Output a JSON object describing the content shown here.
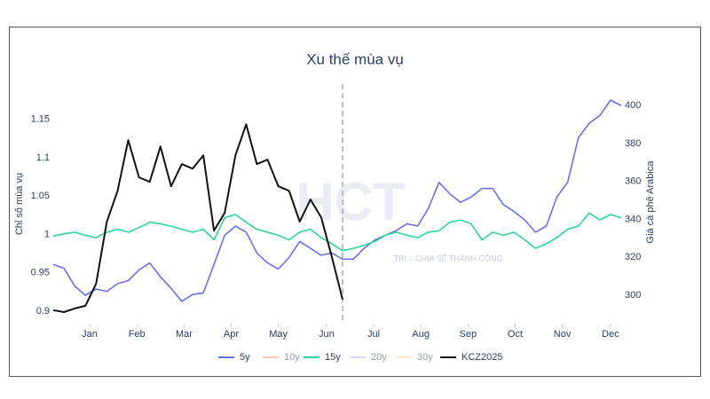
{
  "chart_data": {
    "type": "line",
    "title": "Xu thế mùa vụ",
    "ylabel": "Chỉ số mùa vụ",
    "y2label": "Giá cà phê Arabica",
    "watermark": {
      "logo": "HCT",
      "tagline": "TRI – CHIA SẺ THÀNH CÔNG"
    },
    "x": [
      0,
      1,
      2,
      3,
      4,
      5,
      6,
      7,
      8,
      9,
      10,
      11,
      12,
      13,
      14,
      15,
      16,
      17,
      18,
      19,
      20,
      21,
      22,
      23,
      24,
      25,
      26,
      27,
      28,
      29,
      30,
      31,
      32,
      33,
      34,
      35,
      36,
      37,
      38,
      39,
      40,
      41,
      42,
      43,
      44,
      45,
      46,
      47,
      48,
      49,
      50,
      51,
      52,
      53
    ],
    "xlim": [
      0,
      53
    ],
    "xticks": [
      {
        "value": 3.4,
        "label": "Jan"
      },
      {
        "value": 7.8,
        "label": "Feb"
      },
      {
        "value": 12.2,
        "label": "Mar"
      },
      {
        "value": 16.6,
        "label": "Apr"
      },
      {
        "value": 21.0,
        "label": "May"
      },
      {
        "value": 25.5,
        "label": "Jun"
      },
      {
        "value": 29.9,
        "label": "Jul"
      },
      {
        "value": 34.3,
        "label": "Aug"
      },
      {
        "value": 38.7,
        "label": "Sep"
      },
      {
        "value": 43.1,
        "label": "Oct"
      },
      {
        "value": 47.5,
        "label": "Nov"
      },
      {
        "value": 52.0,
        "label": "Dec"
      }
    ],
    "ylim": [
      0.884,
      1.19
    ],
    "yticks": [
      0.9,
      0.95,
      1,
      1.05,
      1.1,
      1.15
    ],
    "y2lim": [
      285,
      409
    ],
    "y2ticks": [
      300,
      320,
      340,
      360,
      380,
      400
    ],
    "vline_x": 27,
    "grid": false,
    "legend": "bottom",
    "series": [
      {
        "name": "5y",
        "color": "#6b70e6",
        "values": [
          0.961,
          0.956,
          0.933,
          0.921,
          0.929,
          0.926,
          0.936,
          0.94,
          0.954,
          0.963,
          0.945,
          0.93,
          0.913,
          0.922,
          0.924,
          0.961,
          0.999,
          1.011,
          1.003,
          0.976,
          0.963,
          0.955,
          0.97,
          0.991,
          0.982,
          0.973,
          0.976,
          0.968,
          0.968,
          0.982,
          0.993,
          0.999,
          1.005,
          1.014,
          1.011,
          1.034,
          1.068,
          1.053,
          1.042,
          1.049,
          1.06,
          1.06,
          1.039,
          1.03,
          1.019,
          1.003,
          1.011,
          1.049,
          1.068,
          1.126,
          1.145,
          1.155,
          1.175,
          1.168
        ]
      },
      {
        "name": "10y",
        "color": "#f2977a",
        "visible": false
      },
      {
        "name": "15y",
        "color": "#2ed39a",
        "values": [
          0.998,
          1.001,
          1.003,
          0.999,
          0.996,
          1.003,
          1.007,
          1.003,
          1.009,
          1.016,
          1.014,
          1.011,
          1.007,
          1.003,
          1.007,
          0.993,
          1.022,
          1.026,
          1.016,
          1.007,
          1.003,
          0.999,
          0.993,
          1.003,
          1.007,
          0.996,
          0.988,
          0.979,
          0.982,
          0.986,
          0.991,
          0.999,
          1.003,
          0.999,
          0.996,
          1.003,
          1.005,
          1.016,
          1.019,
          1.014,
          0.993,
          1.003,
          0.999,
          1.003,
          0.993,
          0.982,
          0.988,
          0.996,
          1.007,
          1.011,
          1.028,
          1.019,
          1.026,
          1.022
        ]
      },
      {
        "name": "20y",
        "color": "#c7a6f2",
        "visible": false
      },
      {
        "name": "30y",
        "color": "#f8c694",
        "visible": false
      },
      {
        "name": "KCZ2025",
        "color": "#111111",
        "axis": "y2",
        "values": [
          292.1,
          291.1,
          293.0,
          294.4,
          306.1,
          338.8,
          355.1,
          381.8,
          362.2,
          359.8,
          378.5,
          357.5,
          369.2,
          366.8,
          373.8,
          334.1,
          343.5,
          373.8,
          390.2,
          369.2,
          371.5,
          357.5,
          355.1,
          338.8,
          350.5,
          341.1,
          320.1,
          297.7,
          null,
          null,
          null,
          null,
          null,
          null,
          null,
          null,
          null,
          null,
          null,
          null,
          null,
          null,
          null,
          null,
          null,
          null,
          null,
          null,
          null,
          null,
          null,
          null,
          null,
          null
        ]
      }
    ]
  }
}
